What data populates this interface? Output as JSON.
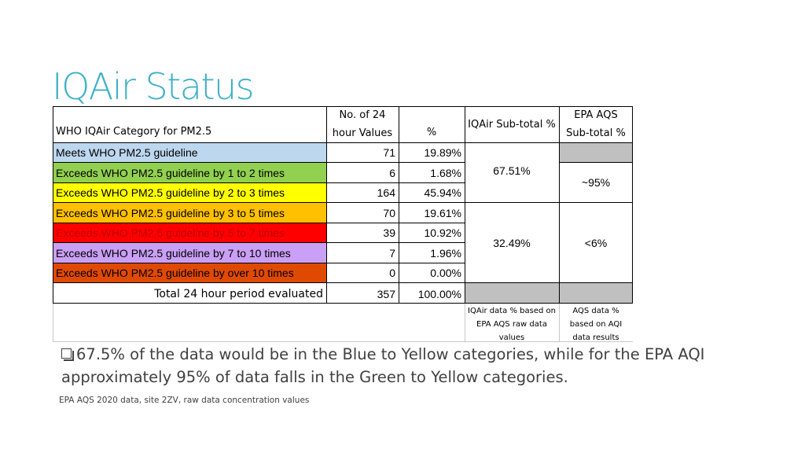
{
  "title": "IQAir Status",
  "table": {
    "headers": {
      "category": "WHO IQAir Category for PM2.5",
      "count": "No. of 24 hour Values",
      "percent": "%",
      "iqair_subtotal": "IQAir Sub-total %",
      "epa_subtotal": "EPA AQS Sub-total %"
    },
    "rows": [
      {
        "label": "Meets WHO PM2.5 guideline",
        "count": "71",
        "percent": "19.89%",
        "bg": "#bdd7ee",
        "fg": "#000000"
      },
      {
        "label": "Exceeds WHO PM2.5 guideline by 1 to 2 times",
        "count": "6",
        "percent": "1.68%",
        "bg": "#92d050",
        "fg": "#000000"
      },
      {
        "label": "Exceeds WHO PM2.5 guideline by 2 to 3 times",
        "count": "164",
        "percent": "45.94%",
        "bg": "#ffff00",
        "fg": "#000000"
      },
      {
        "label": "Exceeds WHO PM2.5 guideline by 3 to 5 times",
        "count": "70",
        "percent": "19.61%",
        "bg": "#ffc000",
        "fg": "#000000"
      },
      {
        "label": "Exceeds WHO PM2.5 guideline by 5 to 7 times",
        "count": "39",
        "percent": "10.92%",
        "bg": "#ff0000",
        "fg": "#c00000"
      },
      {
        "label": "Exceeds WHO PM2.5 guideline by 7 to 10 times",
        "count": "7",
        "percent": "1.96%",
        "bg": "#c9a0f5",
        "fg": "#000000"
      },
      {
        "label": "Exceeds WHO PM2.5 guideline by over 10 times",
        "count": "0",
        "percent": "0.00%",
        "bg": "#e04a00",
        "fg": "#000000"
      }
    ],
    "total": {
      "label": "Total 24 hour period evaluated",
      "count": "357",
      "percent": "100.00%"
    },
    "iqair_subtotals": [
      "67.51%",
      "32.49%"
    ],
    "epa_subtotals": [
      "~95%",
      "<6%"
    ],
    "gray_fill": "#c0c0c0",
    "notes": {
      "iqair": "IQAir data % based on EPA AQS raw data values",
      "aqs": "AQS data % based on AQI data results"
    }
  },
  "bullet_text": "67.5% of the data would be in the Blue to Yellow categories, while for the EPA AQI approximately 95% of data falls in the Green to Yellow categories.",
  "footnote": "EPA AQS 2020 data, site 2ZV, raw data concentration values",
  "colors": {
    "title": "#3fb1c8",
    "body_text": "#404040"
  }
}
